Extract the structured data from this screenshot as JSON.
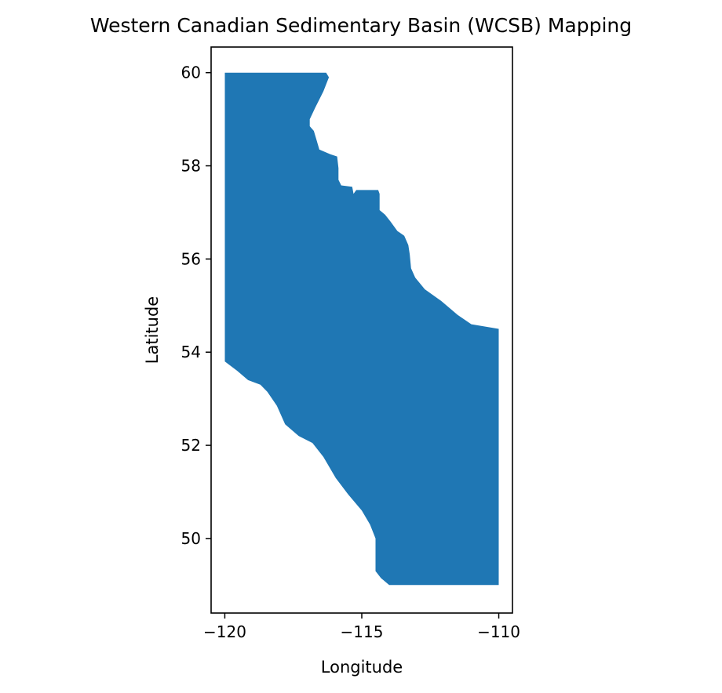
{
  "chart_data": {
    "type": "map",
    "title": "Western Canadian Sedimentary Basin (WCSB) Mapping",
    "xlabel": "Longitude",
    "ylabel": "Latitude",
    "xlim": [
      -120.5,
      -109.5
    ],
    "ylim": [
      48.4,
      60.55
    ],
    "x_ticks": [
      {
        "value": -120,
        "label": "−120"
      },
      {
        "value": -115,
        "label": "−115"
      },
      {
        "value": -110,
        "label": "−110"
      }
    ],
    "y_ticks": [
      {
        "value": 50,
        "label": "50"
      },
      {
        "value": 52,
        "label": "52"
      },
      {
        "value": 54,
        "label": "54"
      },
      {
        "value": 56,
        "label": "56"
      },
      {
        "value": 58,
        "label": "58"
      },
      {
        "value": 60,
        "label": "60"
      }
    ],
    "grid": false,
    "fill_color": "#1f77b4",
    "region_outline": [
      [
        -120.0,
        60.0
      ],
      [
        -116.3,
        60.0
      ],
      [
        -116.2,
        59.9
      ],
      [
        -116.4,
        59.6
      ],
      [
        -116.7,
        59.25
      ],
      [
        -116.9,
        59.0
      ],
      [
        -116.9,
        58.85
      ],
      [
        -116.75,
        58.75
      ],
      [
        -116.65,
        58.55
      ],
      [
        -116.55,
        58.35
      ],
      [
        -116.15,
        58.25
      ],
      [
        -115.9,
        58.2
      ],
      [
        -115.85,
        57.95
      ],
      [
        -115.85,
        57.7
      ],
      [
        -115.75,
        57.58
      ],
      [
        -115.35,
        57.55
      ],
      [
        -115.3,
        57.4
      ],
      [
        -115.2,
        57.48
      ],
      [
        -114.4,
        57.48
      ],
      [
        -114.35,
        57.4
      ],
      [
        -114.35,
        57.05
      ],
      [
        -114.15,
        56.95
      ],
      [
        -113.95,
        56.8
      ],
      [
        -113.7,
        56.6
      ],
      [
        -113.45,
        56.5
      ],
      [
        -113.3,
        56.3
      ],
      [
        -113.25,
        56.1
      ],
      [
        -113.2,
        55.8
      ],
      [
        -113.05,
        55.6
      ],
      [
        -112.7,
        55.35
      ],
      [
        -112.1,
        55.1
      ],
      [
        -111.5,
        54.8
      ],
      [
        -111.0,
        54.6
      ],
      [
        -110.0,
        54.5
      ],
      [
        -110.0,
        49.0
      ],
      [
        -114.0,
        49.0
      ],
      [
        -114.3,
        49.15
      ],
      [
        -114.5,
        49.3
      ],
      [
        -114.5,
        49.6
      ],
      [
        -114.5,
        50.0
      ],
      [
        -114.7,
        50.3
      ],
      [
        -115.0,
        50.6
      ],
      [
        -115.5,
        50.95
      ],
      [
        -115.95,
        51.3
      ],
      [
        -116.4,
        51.75
      ],
      [
        -116.8,
        52.05
      ],
      [
        -117.3,
        52.2
      ],
      [
        -117.8,
        52.45
      ],
      [
        -118.1,
        52.85
      ],
      [
        -118.45,
        53.15
      ],
      [
        -118.7,
        53.3
      ],
      [
        -119.15,
        53.4
      ],
      [
        -119.55,
        53.6
      ],
      [
        -120.0,
        53.8
      ]
    ]
  }
}
